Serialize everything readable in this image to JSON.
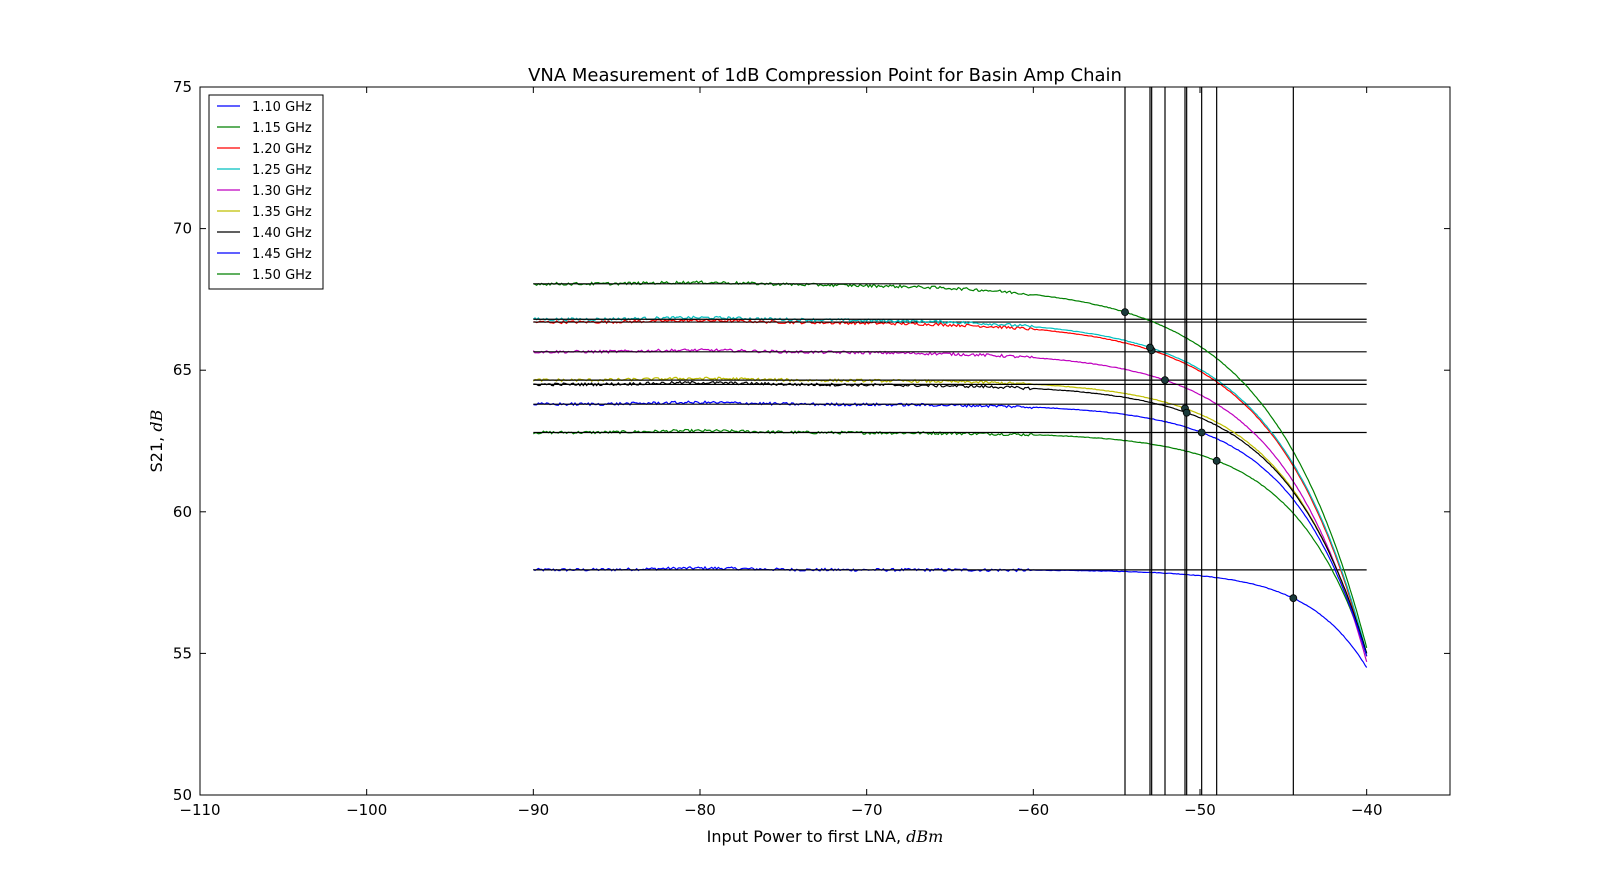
{
  "chart_data": {
    "type": "line",
    "title": "VNA Measurement of 1dB Compression Point for Basin Amp Chain",
    "xlabel": "Input Power to first LNA, ",
    "xlabel_unit": "dBm",
    "ylabel": "S21, ",
    "ylabel_unit": "dB",
    "xlim": [
      -110,
      -35
    ],
    "ylim": [
      50,
      75
    ],
    "xticks": [
      -110,
      -100,
      -90,
      -80,
      -70,
      -60,
      -50,
      -40
    ],
    "yticks": [
      50,
      55,
      60,
      65,
      70,
      75
    ],
    "grid": false,
    "legend_position": "upper-left",
    "series": [
      {
        "name": "1.10 GHz",
        "color": "#0000ff",
        "gain": 57.95,
        "p1db_x": -44.4,
        "p1db_y": 56.95,
        "end_y": 54.5
      },
      {
        "name": "1.15 GHz",
        "color": "#008000",
        "gain": 62.8,
        "p1db_x": -49.0,
        "p1db_y": 61.8,
        "end_y": 55.0
      },
      {
        "name": "1.20 GHz",
        "color": "#ff0000",
        "gain": 66.7,
        "p1db_x": -52.9,
        "p1db_y": 65.7,
        "end_y": 54.9
      },
      {
        "name": "1.25 GHz",
        "color": "#00bfbf",
        "gain": 66.8,
        "p1db_x": -53.0,
        "p1db_y": 65.8,
        "end_y": 55.0
      },
      {
        "name": "1.30 GHz",
        "color": "#bf00bf",
        "gain": 65.65,
        "p1db_x": -52.1,
        "p1db_y": 64.65,
        "end_y": 54.7
      },
      {
        "name": "1.35 GHz",
        "color": "#bfbf00",
        "gain": 64.65,
        "p1db_x": -50.9,
        "p1db_y": 63.65,
        "end_y": 54.9
      },
      {
        "name": "1.40 GHz",
        "color": "#000000",
        "gain": 64.5,
        "p1db_x": -50.8,
        "p1db_y": 63.5,
        "end_y": 55.0
      },
      {
        "name": "1.45 GHz",
        "color": "#0000ff",
        "gain": 63.8,
        "p1db_x": -49.9,
        "p1db_y": 62.8,
        "end_y": 54.9
      },
      {
        "name": "1.50 GHz",
        "color": "#008000",
        "gain": 68.05,
        "p1db_x": -54.5,
        "p1db_y": 67.05,
        "end_y": 55.2
      }
    ],
    "x_start": -90,
    "x_end": -40
  }
}
